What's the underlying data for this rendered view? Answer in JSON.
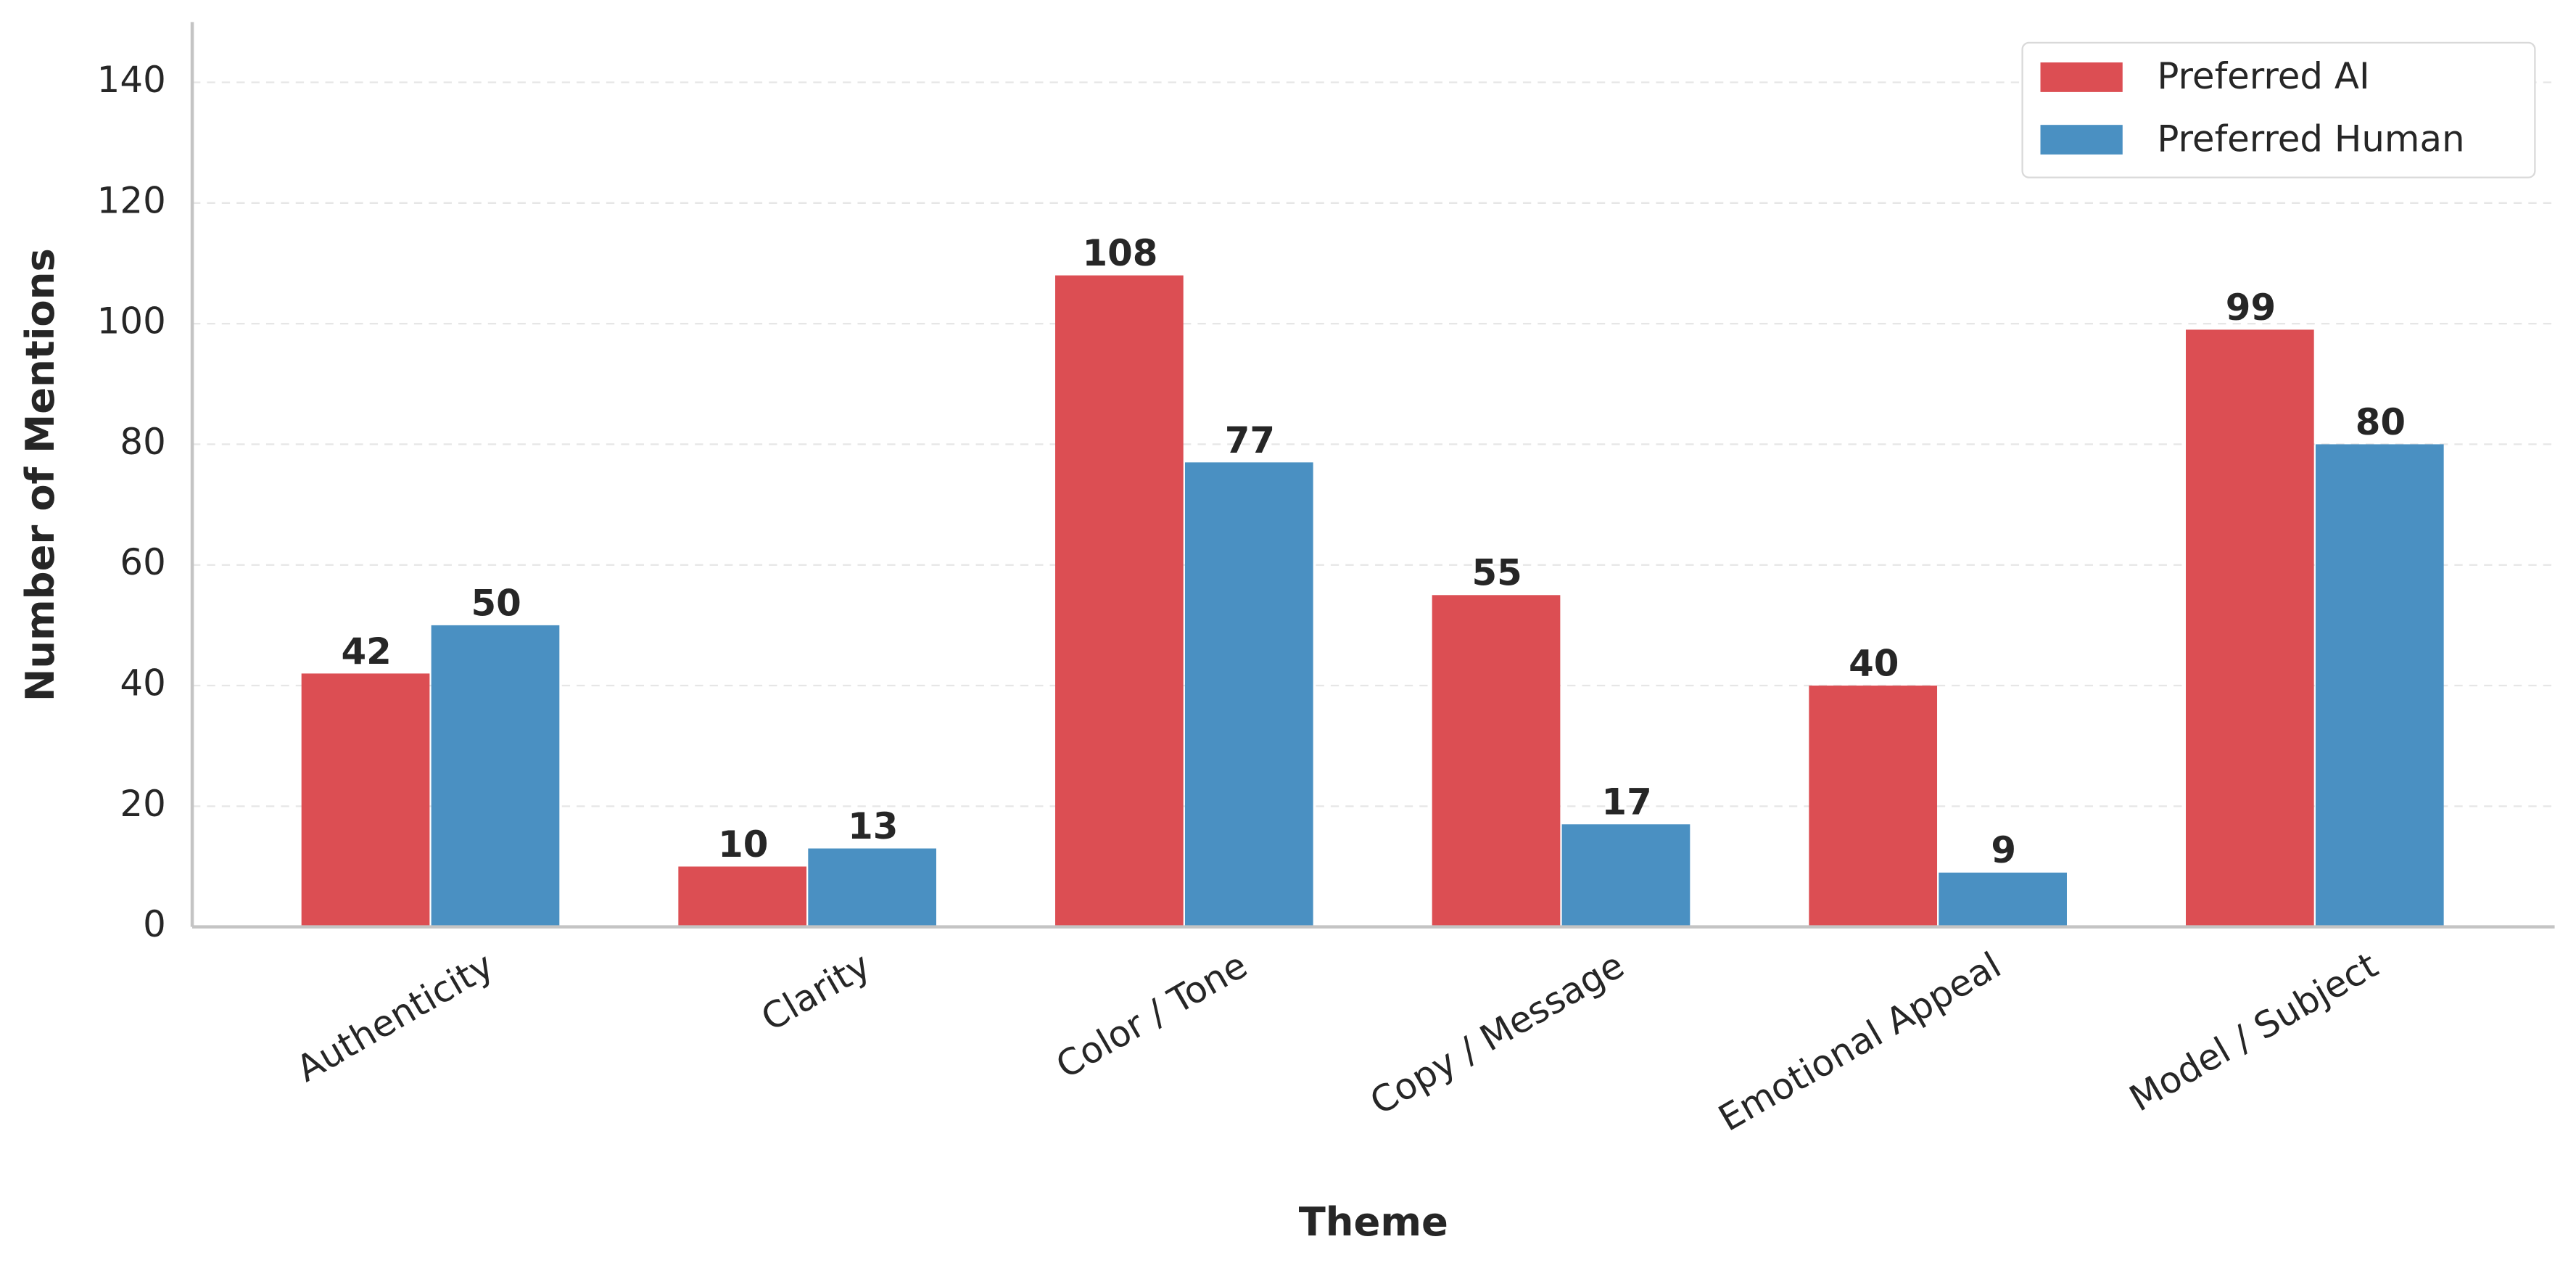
{
  "chart_data": {
    "type": "bar",
    "xlabel": "Theme",
    "ylabel": "Number of Mentions",
    "categories": [
      "Authenticity",
      "Clarity",
      "Color / Tone",
      "Copy / Message",
      "Emotional Appeal",
      "Model / Subject"
    ],
    "series": [
      {
        "name": "Preferred AI",
        "color": "#dc4e53",
        "values": [
          42,
          10,
          108,
          55,
          40,
          99
        ]
      },
      {
        "name": "Preferred Human",
        "color": "#4a90c2",
        "values": [
          50,
          13,
          77,
          17,
          9,
          80
        ]
      }
    ],
    "ylim": [
      0,
      150
    ],
    "yticks": [
      0,
      20,
      40,
      60,
      80,
      100,
      120,
      140
    ],
    "grid": true,
    "legend": "upper right"
  }
}
